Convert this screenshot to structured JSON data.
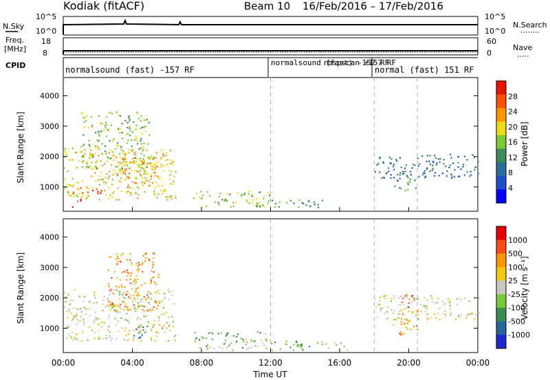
{
  "header": {
    "station": "Kodiak (fitACF)",
    "beam": "Beam 10",
    "date_range": "16/Feb/2016 – 17/Feb/2016"
  },
  "top_panels": {
    "nsky_label": "N.Sky",
    "nsky_ticks": [
      "10^5",
      "10^0"
    ],
    "nsearch_label": "N.Search",
    "nsearch_ticks": [
      "10^5",
      "10^0"
    ],
    "freq_label_1": "Freq.",
    "freq_label_2": "[MHz]",
    "freq_ticks": [
      "18",
      "8"
    ],
    "nave_label": "Nave",
    "nave_ticks": [
      "60",
      "0"
    ],
    "cpid_label": "CPID",
    "cpid_segments": [
      {
        "text": "normalsound (fast) -157 RF",
        "start_hr": 0,
        "end_hr": 12
      },
      {
        "text": "normalsound (fast) -157 RF",
        "start_hr": 12,
        "end_hr": 18
      },
      {
        "text": "rbspscan +157 RF",
        "start_hr": 12,
        "end_hr": 18
      },
      {
        "text": "normal (fast) 151 RF",
        "start_hr": 18,
        "end_hr": 24
      }
    ]
  },
  "time_axis": {
    "label": "Time UT",
    "ticks": [
      "00:00",
      "04:00",
      "08:00",
      "12:00",
      "16:00",
      "20:00",
      "00:00"
    ],
    "dashed_markers_hr": [
      12,
      18,
      20.5
    ]
  },
  "colors": {
    "power_scale": [
      "#0000ff",
      "#1e50c8",
      "#2a6e9e",
      "#3c8c5a",
      "#7cc832",
      "#f0dc14",
      "#ff9600",
      "#ff5000",
      "#e61400"
    ],
    "velocity_scale": [
      "#1e28c8",
      "#2864a0",
      "#3c8c50",
      "#78c83c",
      "#c8c8c0",
      "#f0c814",
      "#ff9600",
      "#ff4b14",
      "#e60000"
    ]
  },
  "chart_data": [
    {
      "type": "heatmap",
      "panel": "power",
      "ylabel": "Slant Range [km]",
      "ylim": [
        200,
        4600
      ],
      "yticks": [
        1000,
        2000,
        3000,
        4000
      ],
      "xlabel": "Time UT",
      "xlim_hr": [
        0,
        24
      ],
      "colorbar_label": "Power [dB]",
      "colorbar_ticks": [
        "28",
        "24",
        "20",
        "16",
        "12",
        "8",
        "4"
      ],
      "regions": [
        {
          "t0": 0.0,
          "t1": 6.5,
          "r0": 600,
          "r1": 2300,
          "level": 5
        },
        {
          "t0": 0.2,
          "t1": 2.5,
          "r0": 700,
          "r1": 1000,
          "level": 7
        },
        {
          "t0": 0.5,
          "t1": 1.0,
          "r0": 350,
          "r1": 650,
          "level": 8
        },
        {
          "t0": 1.0,
          "t1": 5.0,
          "r0": 1600,
          "r1": 3500,
          "level": 4
        },
        {
          "t0": 3.0,
          "t1": 5.5,
          "r0": 1000,
          "r1": 2000,
          "level": 6
        },
        {
          "t0": 7.5,
          "t1": 12.0,
          "r0": 350,
          "r1": 900,
          "level": 4
        },
        {
          "t0": 12.0,
          "t1": 15.0,
          "r0": 300,
          "r1": 600,
          "level": 3
        },
        {
          "t0": 18.0,
          "t1": 24.0,
          "r0": 1300,
          "r1": 2100,
          "level": 2
        },
        {
          "t0": 19.0,
          "t1": 20.5,
          "r0": 900,
          "r1": 1300,
          "level": 3
        }
      ]
    },
    {
      "type": "heatmap",
      "panel": "velocity",
      "ylabel": "Slant Range [km]",
      "ylim": [
        200,
        4600
      ],
      "yticks": [
        1000,
        2000,
        3000,
        4000
      ],
      "xlabel": "Time UT",
      "xlim_hr": [
        0,
        24
      ],
      "colorbar_label": "Velocity [m s⁻¹]",
      "colorbar_ticks": [
        "1000",
        "500",
        "100",
        "25",
        "-25",
        "-100",
        "-500",
        "-1000"
      ],
      "regions": [
        {
          "t0": 0.0,
          "t1": 6.5,
          "r0": 600,
          "r1": 2300,
          "level": 4
        },
        {
          "t0": 2.5,
          "t1": 5.5,
          "r0": 1600,
          "r1": 3500,
          "level": 6
        },
        {
          "t0": 4.0,
          "t1": 5.0,
          "r0": 600,
          "r1": 1100,
          "level": 2
        },
        {
          "t0": 7.5,
          "t1": 12.0,
          "r0": 300,
          "r1": 900,
          "level": 3
        },
        {
          "t0": 12.0,
          "t1": 16.5,
          "r0": 300,
          "r1": 600,
          "level": 3
        },
        {
          "t0": 18.0,
          "t1": 24.0,
          "r0": 1300,
          "r1": 2100,
          "level": 4
        },
        {
          "t0": 19.0,
          "t1": 20.5,
          "r0": 800,
          "r1": 1600,
          "level": 6
        },
        {
          "t0": 19.5,
          "t1": 20.3,
          "r0": 1700,
          "r1": 2200,
          "level": 7
        }
      ]
    }
  ]
}
